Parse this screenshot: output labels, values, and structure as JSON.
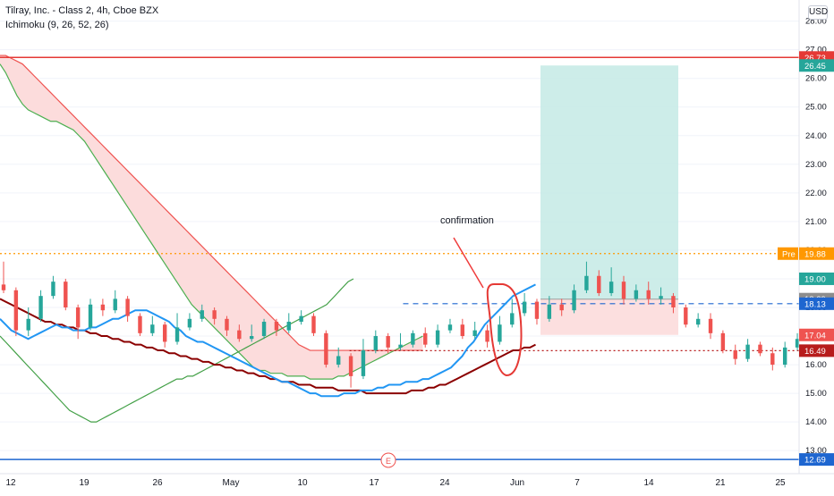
{
  "header": {
    "symbol_title": "Tilray, Inc. - Class 2, 4h, Cboe BZX",
    "indicator": "Ichimoku (9, 26, 52, 26)",
    "currency": "USD"
  },
  "annotation": {
    "text": "confirmation"
  },
  "earnings_marker": "E",
  "colors": {
    "bull": "#26a69a",
    "bear": "#ef5350",
    "tenkan": "#2196f3",
    "kijun": "#8b0000",
    "lagging": "#43a047",
    "span_a": "#4caf50",
    "span_b": "#ef5350",
    "cloud_bear": "#fcdcdc",
    "target_zone": "#c8ebe7",
    "stop_zone": "#fcdcdc"
  },
  "chart_data": {
    "type": "candlestick",
    "title": "Tilray, Inc. - Class 2, 4h, Cboe BZX",
    "ylim": [
      12.6,
      28.3
    ],
    "y_ticks": [
      "13.00",
      "14.00",
      "15.00",
      "16.00",
      "17.00",
      "18.00",
      "19.00",
      "20.00",
      "21.00",
      "22.00",
      "23.00",
      "24.00",
      "25.00",
      "26.00",
      "27.00",
      "28.00"
    ],
    "x_ticks": [
      "12",
      "19",
      "26",
      "May",
      "10",
      "17",
      "24",
      "Jun",
      "7",
      "14",
      "21",
      "25"
    ],
    "price_labels": [
      {
        "value": 26.73,
        "text": "26.73",
        "color": "#e53935"
      },
      {
        "value": 26.45,
        "text": "26.45",
        "color": "#26a69a"
      },
      {
        "value": 19.88,
        "text": "Pre",
        "value_text": "19.88",
        "color": "#ff9800"
      },
      {
        "value": 19.0,
        "text": "19.00",
        "color": "#26a69a"
      },
      {
        "value": 18.29,
        "text": "18.29",
        "color": "#8d8d8d"
      },
      {
        "value": 18.13,
        "text": "18.13",
        "color": "#1e66d0"
      },
      {
        "value": 17.04,
        "text": "17.04",
        "color": "#ef5350"
      },
      {
        "value": 16.49,
        "text": "16.49",
        "color": "#b71c1c"
      },
      {
        "value": 12.69,
        "text": "12.69",
        "color": "#1e66d0"
      }
    ],
    "horizontal_lines": [
      {
        "value": 26.73,
        "style": "solid",
        "color": "#e53935"
      },
      {
        "value": 12.69,
        "style": "solid",
        "color": "#1e66d0"
      },
      {
        "value": 19.88,
        "style": "dotted",
        "color": "#ff9800"
      },
      {
        "value": 18.13,
        "style": "dashed",
        "color": "#1e66d0",
        "from_bar": 143
      },
      {
        "value": 16.49,
        "style": "dotted",
        "color": "#b71c1c",
        "from_bar": 124
      }
    ],
    "position": {
      "entry": 18.29,
      "target": 26.45,
      "stop": 17.04,
      "from_bar": 172,
      "to_bar": 216
    },
    "candles": [
      [
        18.8,
        18.6,
        19.6,
        18.5
      ],
      [
        18.6,
        17.2,
        18.7,
        17.0
      ],
      [
        17.2,
        17.6,
        18.0,
        17.0
      ],
      [
        17.6,
        18.4,
        18.6,
        17.5
      ],
      [
        18.4,
        18.9,
        19.1,
        18.3
      ],
      [
        18.9,
        18.0,
        19.0,
        17.9
      ],
      [
        18.0,
        17.3,
        18.1,
        16.9
      ],
      [
        17.3,
        18.1,
        18.3,
        17.2
      ],
      [
        18.1,
        17.9,
        18.3,
        17.7
      ],
      [
        17.9,
        18.3,
        18.6,
        17.8
      ],
      [
        18.3,
        17.7,
        18.4,
        17.5
      ],
      [
        17.7,
        17.1,
        17.8,
        17.0
      ],
      [
        17.1,
        17.4,
        17.7,
        17.0
      ],
      [
        17.4,
        16.8,
        17.5,
        16.6
      ],
      [
        16.8,
        17.3,
        17.8,
        16.7
      ],
      [
        17.3,
        17.6,
        17.8,
        17.2
      ],
      [
        17.6,
        17.9,
        18.1,
        17.5
      ],
      [
        17.9,
        17.6,
        18.0,
        17.4
      ],
      [
        17.6,
        17.2,
        17.7,
        17.0
      ],
      [
        17.2,
        16.9,
        17.4,
        16.8
      ],
      [
        16.9,
        17.0,
        17.4,
        16.8
      ],
      [
        17.0,
        17.5,
        17.6,
        16.9
      ],
      [
        17.5,
        17.2,
        17.6,
        17.0
      ],
      [
        17.2,
        17.5,
        17.8,
        17.1
      ],
      [
        17.5,
        17.7,
        17.9,
        17.4
      ],
      [
        17.7,
        17.1,
        17.8,
        17.0
      ],
      [
        17.1,
        16.0,
        17.2,
        15.9
      ],
      [
        16.0,
        16.3,
        16.6,
        15.9
      ],
      [
        16.3,
        15.6,
        16.4,
        15.2
      ],
      [
        15.6,
        16.5,
        16.9,
        15.5
      ],
      [
        16.5,
        17.0,
        17.2,
        16.4
      ],
      [
        17.0,
        16.6,
        17.1,
        16.4
      ],
      [
        16.6,
        16.7,
        17.1,
        16.5
      ],
      [
        16.7,
        17.1,
        17.2,
        16.6
      ],
      [
        17.1,
        16.7,
        17.3,
        16.6
      ],
      [
        16.7,
        17.2,
        17.4,
        16.6
      ],
      [
        17.2,
        17.4,
        17.6,
        17.1
      ],
      [
        17.4,
        17.0,
        17.6,
        16.9
      ],
      [
        17.0,
        17.2,
        17.5,
        16.9
      ],
      [
        17.2,
        16.8,
        17.4,
        16.6
      ],
      [
        16.8,
        17.4,
        17.7,
        16.7
      ],
      [
        17.4,
        17.8,
        18.3,
        17.3
      ],
      [
        17.8,
        18.2,
        18.5,
        17.7
      ],
      [
        18.2,
        17.6,
        18.3,
        17.4
      ],
      [
        17.6,
        18.1,
        18.4,
        17.5
      ],
      [
        18.1,
        17.9,
        18.3,
        17.7
      ],
      [
        17.9,
        18.6,
        18.8,
        17.8
      ],
      [
        18.6,
        19.1,
        19.6,
        18.5
      ],
      [
        19.1,
        18.5,
        19.3,
        18.4
      ],
      [
        18.5,
        18.9,
        19.4,
        18.4
      ],
      [
        18.9,
        18.3,
        19.1,
        18.1
      ],
      [
        18.3,
        18.6,
        18.8,
        18.2
      ],
      [
        18.6,
        18.3,
        18.9,
        18.1
      ],
      [
        18.3,
        18.4,
        18.7,
        18.1
      ],
      [
        18.4,
        18.0,
        18.5,
        17.8
      ],
      [
        18.0,
        17.4,
        18.1,
        17.3
      ],
      [
        17.4,
        17.6,
        17.8,
        17.3
      ],
      [
        17.6,
        17.1,
        17.8,
        16.9
      ],
      [
        17.1,
        16.5,
        17.2,
        16.4
      ],
      [
        16.5,
        16.2,
        16.7,
        16.0
      ],
      [
        16.2,
        16.7,
        16.9,
        16.1
      ],
      [
        16.7,
        16.4,
        16.8,
        16.3
      ],
      [
        16.4,
        16.0,
        16.6,
        15.8
      ],
      [
        16.0,
        16.6,
        16.8,
        15.9
      ],
      [
        16.6,
        16.9,
        17.1,
        16.5
      ],
      [
        16.9,
        16.3,
        17.0,
        16.2
      ],
      [
        16.3,
        15.6,
        16.4,
        15.4
      ],
      [
        15.6,
        14.9,
        15.7,
        14.7
      ],
      [
        14.9,
        14.4,
        15.0,
        14.1
      ],
      [
        14.4,
        14.9,
        15.1,
        14.2
      ],
      [
        14.9,
        14.5,
        15.0,
        14.3
      ],
      [
        14.5,
        14.2,
        14.7,
        14.0
      ],
      [
        14.2,
        14.7,
        15.3,
        14.1
      ],
      [
        14.7,
        15.5,
        15.8,
        14.6
      ],
      [
        15.5,
        15.9,
        16.1,
        15.4
      ],
      [
        15.9,
        15.6,
        16.0,
        15.4
      ],
      [
        15.6,
        16.0,
        16.2,
        15.5
      ],
      [
        16.0,
        16.2,
        16.3,
        15.8
      ],
      [
        16.2,
        15.8,
        16.3,
        15.6
      ],
      [
        15.8,
        15.3,
        15.9,
        15.1
      ],
      [
        15.3,
        15.6,
        15.9,
        15.2
      ],
      [
        15.6,
        15.2,
        15.8,
        14.9
      ],
      [
        15.2,
        14.0,
        15.3,
        13.8
      ],
      [
        14.0,
        14.6,
        14.8,
        13.9
      ],
      [
        14.6,
        15.1,
        15.3,
        14.5
      ],
      [
        15.1,
        15.5,
        15.7,
        15.0
      ],
      [
        15.5,
        15.8,
        16.0,
        15.4
      ],
      [
        15.8,
        15.4,
        16.0,
        15.2
      ],
      [
        15.4,
        15.0,
        15.5,
        14.8
      ],
      [
        15.0,
        14.8,
        15.3,
        14.6
      ],
      [
        14.8,
        15.0,
        15.3,
        14.7
      ],
      [
        15.0,
        14.4,
        15.1,
        14.2
      ],
      [
        14.4,
        13.7,
        14.5,
        13.5
      ],
      [
        13.7,
        14.1,
        14.3,
        13.6
      ],
      [
        14.1,
        13.9,
        14.3,
        13.7
      ],
      [
        13.9,
        14.5,
        14.6,
        13.8
      ],
      [
        14.5,
        14.0,
        14.7,
        13.9
      ],
      [
        14.0,
        13.8,
        14.1,
        13.6
      ],
      [
        13.8,
        14.0,
        14.3,
        13.7
      ],
      [
        14.0,
        14.6,
        14.9,
        13.9
      ],
      [
        14.6,
        15.0,
        15.2,
        14.5
      ],
      [
        15.0,
        14.7,
        15.3,
        14.6
      ],
      [
        14.7,
        15.3,
        15.6,
        14.6
      ],
      [
        15.3,
        15.6,
        15.9,
        15.2
      ],
      [
        15.6,
        15.2,
        15.8,
        15.1
      ],
      [
        15.2,
        14.9,
        15.3,
        14.7
      ],
      [
        14.9,
        15.1,
        15.4,
        14.8
      ],
      [
        15.1,
        14.9,
        15.2,
        14.7
      ],
      [
        14.9,
        15.0,
        15.2,
        14.8
      ],
      [
        15.0,
        15.2,
        15.4,
        14.9
      ],
      [
        15.2,
        14.9,
        15.3,
        14.8
      ],
      [
        14.9,
        15.1,
        15.3,
        14.8
      ],
      [
        15.1,
        15.3,
        15.5,
        15.0
      ],
      [
        15.3,
        15.1,
        15.4,
        14.9
      ],
      [
        15.1,
        15.2,
        15.4,
        15.0
      ],
      [
        15.2,
        15.0,
        15.4,
        14.8
      ],
      [
        15.0,
        15.3,
        15.6,
        14.9
      ],
      [
        15.3,
        15.1,
        15.4,
        14.9
      ],
      [
        15.1,
        15.4,
        15.7,
        15.0
      ],
      [
        15.4,
        15.9,
        16.2,
        15.3
      ],
      [
        15.9,
        15.6,
        16.0,
        15.4
      ],
      [
        15.6,
        16.0,
        16.3,
        15.5
      ],
      [
        16.0,
        16.4,
        16.7,
        15.9
      ],
      [
        16.4,
        17.1,
        17.4,
        16.3
      ],
      [
        17.1,
        16.8,
        17.3,
        16.6
      ],
      [
        16.8,
        17.6,
        18.0,
        16.7
      ],
      [
        17.6,
        18.1,
        18.5,
        17.5
      ],
      [
        18.1,
        17.5,
        18.3,
        17.3
      ],
      [
        17.5,
        18.3,
        18.9,
        17.4
      ],
      [
        18.3,
        18.0,
        18.5,
        17.7
      ],
      [
        18.0,
        17.2,
        18.1,
        17.0
      ],
      [
        17.2,
        17.6,
        17.8,
        17.1
      ],
      [
        17.6,
        17.9,
        18.3,
        17.5
      ],
      [
        17.9,
        17.4,
        18.0,
        17.3
      ],
      [
        17.4,
        18.3,
        18.7,
        17.3
      ],
      [
        18.3,
        18.9,
        19.6,
        18.2
      ]
    ],
    "series": {
      "tenkan_sen": [
        17.6,
        17.4,
        17.2,
        17.1,
        17.0,
        16.9,
        17.0,
        17.1,
        17.2,
        17.3,
        17.4,
        17.3,
        17.3,
        17.2,
        17.2,
        17.2,
        17.3,
        17.3,
        17.4,
        17.5,
        17.6,
        17.6,
        17.7,
        17.8,
        17.9,
        17.9,
        17.9,
        17.8,
        17.7,
        17.6,
        17.5,
        17.3,
        17.2,
        17.0,
        16.9,
        16.8,
        16.8,
        16.7,
        16.6,
        16.5,
        16.4,
        16.3,
        16.2,
        16.1,
        16.0,
        15.9,
        15.8,
        15.7,
        15.6,
        15.5,
        15.4,
        15.4,
        15.3,
        15.2,
        15.1,
        15.0,
        15.0,
        14.9,
        14.9,
        14.9,
        14.9,
        15.0,
        15.0,
        15.0,
        15.1,
        15.1,
        15.1,
        15.2,
        15.2,
        15.3,
        15.3,
        15.3,
        15.4,
        15.4,
        15.4,
        15.5,
        15.5,
        15.6,
        15.7,
        15.8,
        15.9,
        16.1,
        16.3,
        16.6,
        16.8,
        17.1,
        17.4,
        17.6,
        17.8,
        18.0,
        18.2,
        18.4,
        18.5,
        18.6,
        18.7,
        18.8
      ],
      "kijun_sen": [
        18.3,
        18.2,
        18.1,
        18.0,
        17.9,
        17.8,
        17.7,
        17.6,
        17.5,
        17.5,
        17.4,
        17.4,
        17.3,
        17.3,
        17.2,
        17.2,
        17.1,
        17.1,
        17.0,
        17.0,
        16.9,
        16.9,
        16.8,
        16.8,
        16.7,
        16.7,
        16.6,
        16.6,
        16.5,
        16.5,
        16.4,
        16.4,
        16.3,
        16.3,
        16.2,
        16.2,
        16.1,
        16.1,
        16.0,
        16.0,
        15.9,
        15.9,
        15.8,
        15.8,
        15.7,
        15.7,
        15.6,
        15.6,
        15.5,
        15.5,
        15.4,
        15.4,
        15.4,
        15.3,
        15.3,
        15.3,
        15.2,
        15.2,
        15.2,
        15.2,
        15.1,
        15.1,
        15.1,
        15.1,
        15.1,
        15.0,
        15.0,
        15.0,
        15.0,
        15.0,
        15.0,
        15.0,
        15.0,
        15.1,
        15.1,
        15.1,
        15.2,
        15.2,
        15.3,
        15.3,
        15.4,
        15.5,
        15.6,
        15.7,
        15.8,
        15.9,
        16.0,
        16.1,
        16.2,
        16.3,
        16.4,
        16.5,
        16.5,
        16.6,
        16.6,
        16.7
      ],
      "chikou_span": [
        17.0,
        16.8,
        16.6,
        16.4,
        16.2,
        16.0,
        15.8,
        15.6,
        15.4,
        15.2,
        15.0,
        14.8,
        14.6,
        14.4,
        14.3,
        14.2,
        14.1,
        14.0,
        14.0,
        14.1,
        14.2,
        14.3,
        14.4,
        14.5,
        14.6,
        14.7,
        14.8,
        14.9,
        15.0,
        15.1,
        15.2,
        15.3,
        15.4,
        15.5,
        15.5,
        15.6,
        15.6,
        15.7,
        15.8,
        15.9,
        16.0,
        16.1,
        16.2,
        16.3,
        16.4,
        16.5,
        16.6,
        16.7,
        16.8,
        16.9,
        17.0,
        17.1,
        17.2,
        17.3,
        17.4,
        17.5,
        17.6,
        17.7,
        17.8,
        17.9,
        18.0,
        18.1,
        18.3,
        18.5,
        18.7,
        18.9,
        19.0
      ],
      "senkou_span_a": [
        26.5,
        26.2,
        25.8,
        25.4,
        25.1,
        24.9,
        24.8,
        24.7,
        24.6,
        24.5,
        24.5,
        24.4,
        24.3,
        24.2,
        24.0,
        23.8,
        23.5,
        23.2,
        22.9,
        22.6,
        22.3,
        22.0,
        21.7,
        21.4,
        21.1,
        20.8,
        20.5,
        20.2,
        19.9,
        19.6,
        19.3,
        19.0,
        18.7,
        18.4,
        18.1,
        17.9,
        17.7,
        17.5,
        17.3,
        17.1,
        16.9,
        16.7,
        16.5,
        16.3,
        16.1,
        15.9,
        15.8,
        15.8,
        15.7,
        15.7,
        15.7,
        15.6,
        15.6,
        15.6,
        15.6,
        15.5,
        15.5,
        15.5,
        15.5,
        15.5,
        15.6,
        15.6,
        15.7,
        15.8,
        15.9,
        16.0,
        16.1,
        16.2,
        16.3,
        16.4,
        16.5,
        16.6,
        16.7,
        16.8,
        16.9,
        17.0
      ],
      "senkou_span_b": [
        26.8,
        26.8,
        26.7,
        26.6,
        26.5,
        26.3,
        26.1,
        25.9,
        25.7,
        25.5,
        25.3,
        25.1,
        24.9,
        24.7,
        24.5,
        24.3,
        24.1,
        23.9,
        23.7,
        23.5,
        23.3,
        23.1,
        22.9,
        22.7,
        22.5,
        22.3,
        22.1,
        21.9,
        21.7,
        21.5,
        21.3,
        21.1,
        20.9,
        20.7,
        20.5,
        20.3,
        20.1,
        19.9,
        19.7,
        19.5,
        19.3,
        19.1,
        18.9,
        18.7,
        18.5,
        18.3,
        18.1,
        17.9,
        17.7,
        17.5,
        17.3,
        17.1,
        16.9,
        16.7,
        16.6,
        16.5,
        16.5,
        16.5,
        16.5,
        16.5,
        16.5,
        16.5,
        16.5,
        16.5,
        16.5,
        16.5,
        16.5,
        16.5,
        16.5,
        16.5,
        16.5,
        16.5,
        16.5,
        16.5,
        16.5,
        16.5
      ]
    }
  }
}
